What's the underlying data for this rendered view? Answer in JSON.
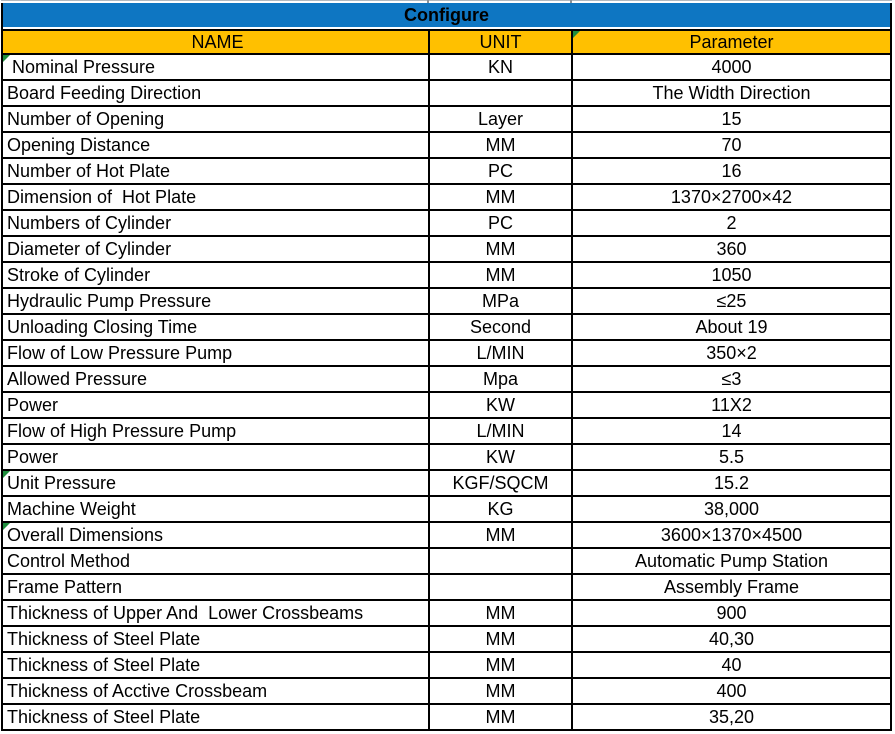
{
  "table": {
    "title": "Configure",
    "columns": [
      "NAME",
      "UNIT",
      "Parameter"
    ],
    "rows": [
      {
        "name": " Nominal Pressure",
        "unit": "KN",
        "parameter": "4000",
        "flag": true
      },
      {
        "name": "Board Feeding Direction",
        "unit": "",
        "parameter": "The Width Direction",
        "flag": false
      },
      {
        "name": "Number of Opening",
        "unit": "Layer",
        "parameter": "15",
        "flag": false
      },
      {
        "name": "Opening Distance",
        "unit": "MM",
        "parameter": "70",
        "flag": false
      },
      {
        "name": "Number of Hot Plate",
        "unit": "PC",
        "parameter": "16",
        "flag": false
      },
      {
        "name": "Dimension of  Hot Plate",
        "unit": "MM",
        "parameter": "1370×2700×42",
        "flag": false
      },
      {
        "name": "Numbers of Cylinder",
        "unit": "PC",
        "parameter": "2",
        "flag": false
      },
      {
        "name": "Diameter of Cylinder",
        "unit": "MM",
        "parameter": "360",
        "flag": false
      },
      {
        "name": "Stroke of Cylinder",
        "unit": "MM",
        "parameter": "1050",
        "flag": false
      },
      {
        "name": "Hydraulic Pump Pressure",
        "unit": "MPa",
        "parameter": "≤25",
        "flag": false
      },
      {
        "name": "Unloading Closing Time",
        "unit": "Second",
        "parameter": "About 19",
        "flag": false
      },
      {
        "name": "Flow of Low Pressure Pump",
        "unit": "L/MIN",
        "parameter": "350×2",
        "flag": false
      },
      {
        "name": "Allowed Pressure",
        "unit": "Mpa",
        "parameter": "≤3",
        "flag": false
      },
      {
        "name": "Power",
        "unit": "KW",
        "parameter": "11X2",
        "flag": false
      },
      {
        "name": "Flow of High Pressure Pump",
        "unit": "L/MIN",
        "parameter": "14",
        "flag": false
      },
      {
        "name": "Power",
        "unit": "KW",
        "parameter": "5.5",
        "flag": false
      },
      {
        "name": "Unit Pressure",
        "unit": "KGF/SQCM",
        "parameter": "15.2",
        "flag": true
      },
      {
        "name": "Machine Weight",
        "unit": "KG",
        "parameter": "38,000",
        "flag": false
      },
      {
        "name": "Overall Dimensions",
        "unit": "MM",
        "parameter": "3600×1370×4500",
        "flag": true
      },
      {
        "name": "Control Method",
        "unit": "",
        "parameter": "Automatic Pump Station",
        "flag": false
      },
      {
        "name": "Frame Pattern",
        "unit": "",
        "parameter": "Assembly Frame",
        "flag": false
      },
      {
        "name": "Thickness of Upper And  Lower Crossbeams",
        "unit": "MM",
        "parameter": "900",
        "flag": false
      },
      {
        "name": "Thickness of Steel Plate",
        "unit": "MM",
        "parameter": "40,30",
        "flag": false
      },
      {
        "name": "Thickness of Steel Plate",
        "unit": "MM",
        "parameter": "40",
        "flag": false
      },
      {
        "name": "Thickness of Acctive Crossbeam",
        "unit": "MM",
        "parameter": "400",
        "flag": false
      },
      {
        "name": "Thickness of Steel Plate",
        "unit": "MM",
        "parameter": "35,20",
        "flag": false
      }
    ],
    "header_flag_on_parameter": true
  },
  "colors": {
    "title_bg": "#0e76c2",
    "header_bg": "#ffc000",
    "border": "#000000",
    "flag_green": "#1f8e3d",
    "gridline_gray": "#b3b9bf"
  }
}
